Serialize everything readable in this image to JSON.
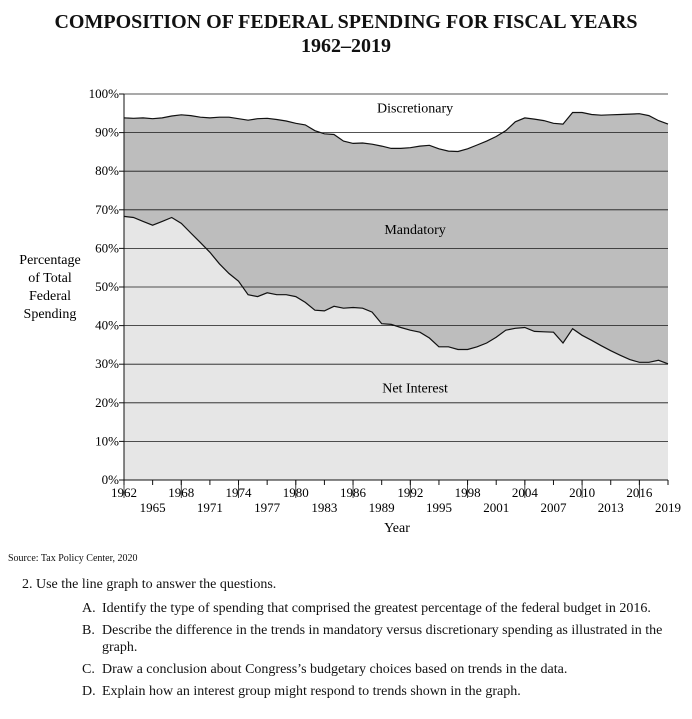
{
  "title_line1": "COMPOSITION OF FEDERAL SPENDING FOR FISCAL YEARS",
  "title_line2": "1962–2019",
  "chart_data": {
    "type": "area",
    "title": "COMPOSITION OF FEDERAL SPENDING FOR FISCAL YEARS 1962–2019",
    "xlabel": "Year",
    "ylabel": "Percentage of Total Federal Spending",
    "ylabel_lines": [
      "Percentage",
      "of Total",
      "Federal",
      "Spending"
    ],
    "xlim": [
      1962,
      2019
    ],
    "ylim": [
      0,
      100
    ],
    "yticks": [
      0,
      10,
      20,
      30,
      40,
      50,
      60,
      70,
      80,
      90,
      100
    ],
    "ytick_labels": [
      "0%",
      "10%",
      "20%",
      "30%",
      "40%",
      "50%",
      "60%",
      "70%",
      "80%",
      "90%",
      "100%"
    ],
    "xticks_top_row": [
      "1962",
      "1968",
      "1974",
      "1980",
      "1986",
      "1992",
      "1998",
      "2004",
      "2010",
      "2016"
    ],
    "xticks_bottom_row": [
      "1965",
      "1971",
      "1977",
      "1983",
      "1989",
      "1995",
      "2001",
      "2007",
      "2013",
      "2019"
    ],
    "grid": true,
    "area_labels": [
      "Net Interest",
      "Mandatory",
      "Discretionary"
    ],
    "x": [
      1962,
      1963,
      1964,
      1965,
      1966,
      1967,
      1968,
      1969,
      1970,
      1971,
      1972,
      1973,
      1974,
      1975,
      1976,
      1977,
      1978,
      1979,
      1980,
      1981,
      1982,
      1983,
      1984,
      1985,
      1986,
      1987,
      1988,
      1989,
      1990,
      1991,
      1992,
      1993,
      1994,
      1995,
      1996,
      1997,
      1998,
      1999,
      2000,
      2001,
      2002,
      2003,
      2004,
      2005,
      2006,
      2007,
      2008,
      2009,
      2010,
      2011,
      2012,
      2013,
      2014,
      2015,
      2016,
      2017,
      2018,
      2019
    ],
    "cumulative_series": [
      {
        "name": "Discretionary",
        "values": [
          68.3,
          68,
          67,
          66,
          67,
          68,
          66.5,
          64,
          61.5,
          59,
          56,
          53.5,
          51.5,
          48,
          47.5,
          48.5,
          48,
          48,
          47.5,
          46,
          44,
          43.8,
          45,
          44.5,
          44.7,
          44.5,
          43.5,
          40.5,
          40.3,
          39.5,
          38.8,
          38.3,
          36.8,
          34.5,
          34.5,
          33.8,
          33.8,
          34.5,
          35.5,
          37,
          38.8,
          39.3,
          39.5,
          38.5,
          38.4,
          38.3,
          35.5,
          39.2,
          37.5,
          36.2,
          34.8,
          33.5,
          32.3,
          31.2,
          30.5,
          30.5,
          31,
          30.1
        ]
      },
      {
        "name": "Mandatory",
        "values": [
          93.8,
          93.7,
          93.8,
          93.6,
          93.8,
          94.3,
          94.6,
          94.4,
          94,
          93.8,
          94,
          94,
          93.6,
          93.2,
          93.6,
          93.7,
          93.4,
          93,
          92.4,
          92,
          90.5,
          89.7,
          89.5,
          87.8,
          87.2,
          87.3,
          87,
          86.5,
          85.9,
          85.9,
          86.1,
          86.5,
          86.7,
          85.8,
          85.2,
          85.1,
          85.8,
          86.8,
          87.8,
          89,
          90.5,
          92.8,
          93.8,
          93.5,
          93.1,
          92.4,
          92.2,
          95.2,
          95.2,
          94.7,
          94.5,
          94.6,
          94.7,
          94.8,
          94.9,
          94.4,
          93.1,
          92.2
        ]
      },
      {
        "name": "Net Interest",
        "values": [
          100,
          100,
          100,
          100,
          100,
          100,
          100,
          100,
          100,
          100,
          100,
          100,
          100,
          100,
          100,
          100,
          100,
          100,
          100,
          100,
          100,
          100,
          100,
          100,
          100,
          100,
          100,
          100,
          100,
          100,
          100,
          100,
          100,
          100,
          100,
          100,
          100,
          100,
          100,
          100,
          100,
          100,
          100,
          100,
          100,
          100,
          100,
          100,
          100,
          100,
          100,
          100,
          100,
          100,
          100,
          100,
          100,
          100
        ]
      }
    ],
    "colors": {
      "discretionary": "#e6e6e6",
      "mandatory": "#bdbdbd",
      "net_interest": "#ffffff",
      "gridline": "#1a1a1a"
    }
  },
  "source": "Source: Tax Policy Center, 2020",
  "question": "2. Use the line graph to answer the questions.",
  "items": [
    {
      "letter": "A.",
      "text": "Identify the type of spending that comprised the greatest percentage of the federal budget in 2016."
    },
    {
      "letter": "B.",
      "text": "Describe the difference in the trends in mandatory versus discretionary spending as illustrated in the graph."
    },
    {
      "letter": "C.",
      "text": "Draw a conclusion about Congress’s budgetary choices based on trends in the data."
    },
    {
      "letter": "D.",
      "text": "Explain how an interest group might respond to trends shown in the graph."
    }
  ]
}
